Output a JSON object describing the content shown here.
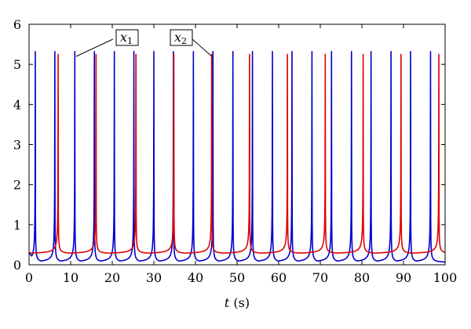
{
  "chart_data": {
    "type": "line",
    "title": "",
    "xlabel_var": "t",
    "xlabel_unit": " (s)",
    "ylabel": "",
    "xlim": [
      0,
      100
    ],
    "ylim": [
      0,
      6
    ],
    "xticks": [
      0,
      10,
      20,
      30,
      40,
      50,
      60,
      70,
      80,
      90,
      100
    ],
    "yticks": [
      0,
      1,
      2,
      3,
      4,
      5,
      6
    ],
    "grid": false,
    "legend": "none",
    "series": [
      {
        "key": "x1",
        "color": "#0000cc",
        "baseline": 0.05,
        "peak": 5.32,
        "spike_times": [
          1.5,
          6.2,
          11.0,
          15.7,
          20.5,
          25.2,
          30.0,
          34.7,
          39.5,
          44.2,
          49.0,
          53.7,
          58.5,
          63.2,
          68.0,
          72.7,
          77.5,
          82.2,
          87.0,
          91.7,
          96.5
        ],
        "first_value": 0.3
      },
      {
        "key": "x2",
        "color": "#e00000",
        "baseline": 0.27,
        "peak": 5.25,
        "spike_times": [
          7.0,
          16.1,
          25.7,
          34.8,
          43.9,
          53.0,
          62.1,
          71.2,
          80.3,
          89.4,
          98.5
        ],
        "first_value": 0.3
      }
    ],
    "annotations": [
      {
        "var": "x",
        "sub": "1",
        "series": "x1",
        "points_to_x": 20.9,
        "points_to_y": 5.6
      },
      {
        "var": "x",
        "sub": "2",
        "series": "x2",
        "points_to_x": 43.9,
        "points_to_y": 5.2
      }
    ]
  }
}
